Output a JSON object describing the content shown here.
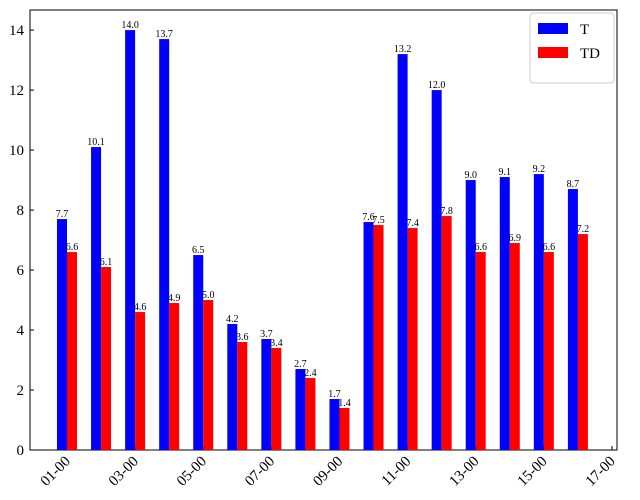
{
  "chart_data": {
    "type": "bar",
    "categories": [
      "01-00",
      null,
      "03-00",
      null,
      "05-00",
      null,
      "07-00",
      null,
      "09-00",
      null,
      "11-00",
      null,
      "13-00",
      null,
      "15-00",
      null,
      "17-00"
    ],
    "series": [
      {
        "name": "T",
        "color": "#0000ff",
        "values": [
          7.7,
          10.1,
          14.0,
          13.7,
          6.5,
          4.2,
          3.7,
          2.7,
          1.7,
          7.6,
          13.2,
          12.0,
          9.0,
          9.1,
          9.2,
          8.7,
          null
        ],
        "value_labels": [
          "7.7",
          "10.1",
          "14.0",
          "13.7",
          "6.5",
          "4.2",
          "3.7",
          "2.7",
          "1.7",
          "7.6",
          "13.2",
          "12.0",
          "9.0",
          "9.1",
          "9.2",
          "8.7",
          null
        ]
      },
      {
        "name": "TD",
        "color": "#ff0000",
        "values": [
          6.6,
          6.1,
          4.6,
          4.9,
          5.0,
          3.6,
          3.4,
          2.4,
          1.4,
          7.5,
          7.4,
          7.8,
          6.6,
          6.9,
          6.6,
          7.2,
          null
        ],
        "value_labels": [
          "6.6",
          "6.1",
          "4.6",
          "4.9",
          "5.0",
          "3.6",
          "3.4",
          "2.4",
          "1.4",
          "7.5",
          "7.4",
          "7.8",
          "6.6",
          "6.9",
          "6.6",
          "7.2",
          null
        ]
      }
    ],
    "ylim": [
      0,
      14.67
    ],
    "yticks": [
      0,
      2,
      4,
      6,
      8,
      10,
      12,
      14
    ],
    "legend": "upper right",
    "grid": false
  }
}
